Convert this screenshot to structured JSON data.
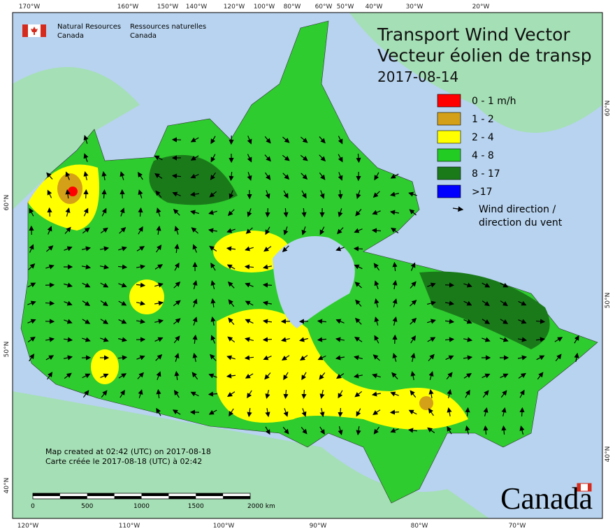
{
  "header": {
    "agency_en": [
      "Natural Resources",
      "Canada"
    ],
    "agency_fr": [
      "Ressources naturelles",
      "Canada"
    ]
  },
  "title": {
    "lines": [
      "Transport Wind Vector",
      "Vecteur éolien de transp"
    ],
    "date": "2017-08-14"
  },
  "legend": {
    "items": [
      {
        "label": "0 - 1 m/h",
        "color": "#ff0000"
      },
      {
        "label": "1 - 2",
        "color": "#d4a017"
      },
      {
        "label": "2 - 4",
        "color": "#ffff00"
      },
      {
        "label": "4 - 8",
        "color": "#22cc22"
      },
      {
        "label": "8 - 17",
        "color": "#1a7a1a"
      },
      {
        "label": ">17",
        "color": "#0000ff"
      }
    ],
    "arrow_label": [
      "Wind direction /",
      "direction du vent"
    ]
  },
  "graticule": {
    "top": [
      "170°W",
      "160°W",
      "150°W",
      "140°W",
      "120°W",
      "100°W",
      "80°W",
      "60°W",
      "50°W",
      "40°W",
      "30°W",
      "20°W"
    ],
    "bottom": [
      "120°W",
      "110°W",
      "100°W",
      "90°W",
      "80°W",
      "70°W"
    ],
    "left": [
      "60°N",
      "50°N",
      "40°N"
    ],
    "right": [
      "60°N",
      "50°N",
      "40°N"
    ]
  },
  "credit": [
    "Map created at 02:42 (UTC) on 2017-08-18",
    "Carte créée le 2017-08-18 (UTC) à 02:42"
  ],
  "scale_bar": {
    "labels": [
      "0",
      "500",
      "1000",
      "1500",
      "2000 km"
    ]
  },
  "wordmark": "Canada"
}
